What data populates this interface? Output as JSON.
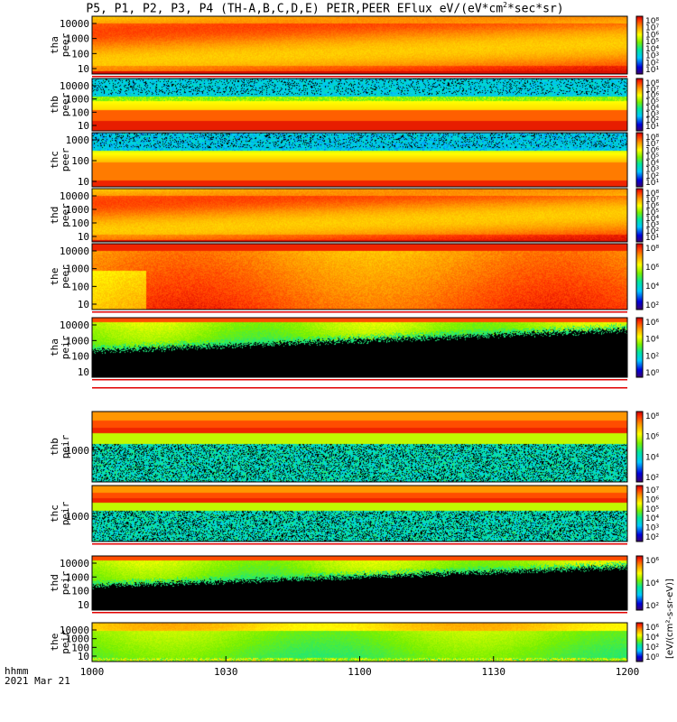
{
  "chart_data": {
    "type": "heatmap",
    "title": "P5, P1, P2, P3, P4 (TH-A,B,C,D,E) PEIR,PEER EFlux eV/(eV*cm",
    "title_sup": "2",
    "title_tail": "*sec*sr)",
    "x_ticks": [
      "1000",
      "1030",
      "1100",
      "1130",
      "1200"
    ],
    "x_label": "hhmm",
    "date": "2021 Mar 21",
    "colorbar_units": "[eV/(cm²-s-sr-eV)]",
    "panels": [
      {
        "id": "tha-peer",
        "probe": "tha",
        "inst": "peer",
        "yticks": [
          "10000",
          "1000",
          "100",
          "10"
        ],
        "cbar_ticks": [
          "10⁸",
          "10⁷",
          "10⁶",
          "10⁵",
          "10⁴",
          "10³",
          "10²",
          "10¹"
        ],
        "pattern": "peer-hot"
      },
      {
        "id": "thb-peer",
        "probe": "thb",
        "inst": "peer",
        "yticks": [
          "10000",
          "1000",
          "100",
          "10"
        ],
        "cbar_ticks": [
          "10⁸",
          "10⁷",
          "10⁶",
          "10⁵",
          "10⁴",
          "10³",
          "10²",
          "10¹"
        ],
        "pattern": "peer-noisy"
      },
      {
        "id": "thc-peer",
        "probe": "thc",
        "inst": "peer",
        "yticks": [
          "1000",
          "100",
          "10"
        ],
        "cbar_ticks": [
          "10⁸",
          "10⁷",
          "10⁶",
          "10⁵",
          "10⁴",
          "10³",
          "10²",
          "10¹"
        ],
        "pattern": "peer-noisy2"
      },
      {
        "id": "thd-peer",
        "probe": "thd",
        "inst": "peer",
        "yticks": [
          "10000",
          "1000",
          "100",
          "10"
        ],
        "cbar_ticks": [
          "10⁸",
          "10⁷",
          "10⁶",
          "10⁵",
          "10⁴",
          "10³",
          "10²",
          "10¹"
        ],
        "pattern": "peer-hot"
      },
      {
        "id": "the-peer",
        "probe": "the",
        "inst": "peer",
        "yticks": [
          "10000",
          "1000",
          "100",
          "10"
        ],
        "cbar_ticks": [
          "10⁸",
          "10⁶",
          "10⁴",
          "10²"
        ],
        "pattern": "peer-e"
      },
      {
        "id": "tha-peir",
        "probe": "tha",
        "inst": "peir",
        "yticks": [
          "10000",
          "1000",
          "100",
          "10"
        ],
        "cbar_ticks": [
          "10⁶",
          "10⁴",
          "10²",
          "10⁰"
        ],
        "pattern": "peir-black"
      },
      {
        "id": "thb-peir",
        "probe": "thb",
        "inst": "peir",
        "yticks": [
          "1000"
        ],
        "cbar_ticks": [
          "10⁸",
          "10⁶",
          "10⁴",
          "10²"
        ],
        "pattern": "peir-noisy"
      },
      {
        "id": "thc-peir",
        "probe": "thc",
        "inst": "peir",
        "yticks": [
          "1000"
        ],
        "cbar_ticks": [
          "10⁷",
          "10⁶",
          "10⁵",
          "10⁴",
          "10³",
          "10²"
        ],
        "pattern": "peir-noisy"
      },
      {
        "id": "thd-peir",
        "probe": "thd",
        "inst": "peir",
        "yticks": [
          "10000",
          "1000",
          "100",
          "10"
        ],
        "cbar_ticks": [
          "10⁶",
          "10⁴",
          "10²"
        ],
        "pattern": "peir-black"
      },
      {
        "id": "the-peir",
        "probe": "the",
        "inst": "peir",
        "yticks": [
          "10000",
          "1000",
          "100",
          "10"
        ],
        "cbar_ticks": [
          "10⁶",
          "10⁴",
          "10²",
          "10⁰"
        ],
        "pattern": "peir-e"
      }
    ]
  }
}
